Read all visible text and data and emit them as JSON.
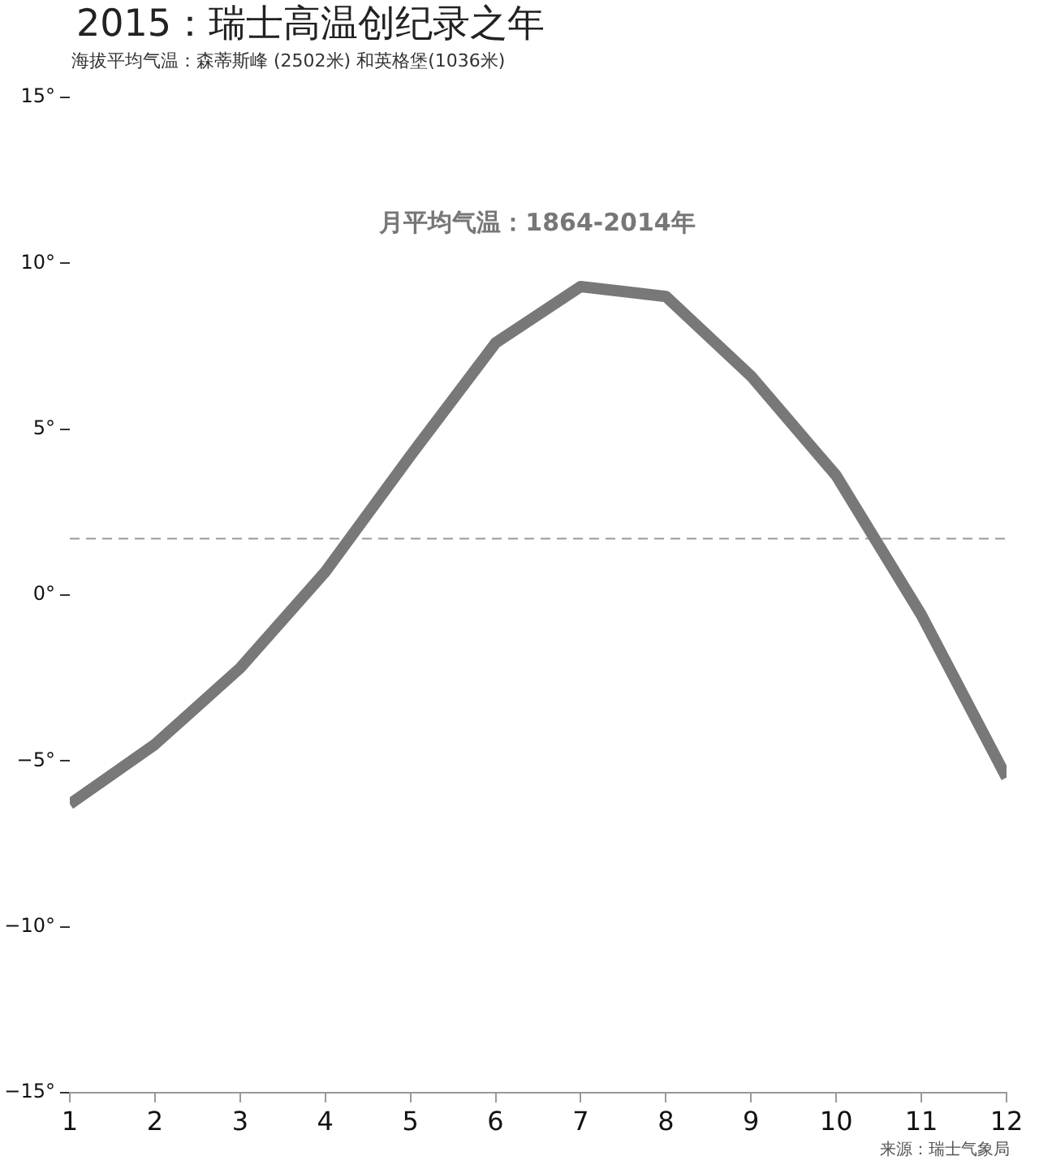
{
  "chart_data": {
    "type": "line",
    "title": "2015：瑞士高温创纪录之年",
    "subtitle": "海拔平均气温：森蒂斯峰 (2502米) 和英格堡(1036米)",
    "annotations": [
      "月平均气温：1864-2014年",
      "来源：瑞士气象局"
    ],
    "x": [
      1,
      2,
      3,
      4,
      5,
      6,
      7,
      8,
      9,
      10,
      11,
      12
    ],
    "series": [
      {
        "color": "#787878",
        "values": [
          -6.3,
          -4.5,
          -2.2,
          0.7,
          4.2,
          7.6,
          9.3,
          9.0,
          6.6,
          3.6,
          -0.6,
          -5.5
        ]
      }
    ],
    "xlim": [
      1,
      12
    ],
    "xticks": [
      1,
      2,
      3,
      4,
      5,
      6,
      7,
      8,
      9,
      10,
      11,
      12
    ],
    "ylim": [
      -15,
      15
    ],
    "yticks": [
      {
        "value": -15,
        "label": "−15°"
      },
      {
        "value": -10,
        "label": "−10°"
      },
      {
        "value": -5,
        "label": "−5°"
      },
      {
        "value": 0,
        "label": "0°"
      },
      {
        "value": 5,
        "label": "5°"
      },
      {
        "value": 10,
        "label": "10°"
      },
      {
        "value": 15,
        "label": "15°"
      }
    ],
    "ref_lines": [
      {
        "axis": "y",
        "value": 1.7,
        "color": "#999999",
        "line_style": "dashed"
      }
    ],
    "grid": false,
    "legend": false,
    "marker": "none",
    "line_style": "solid"
  }
}
